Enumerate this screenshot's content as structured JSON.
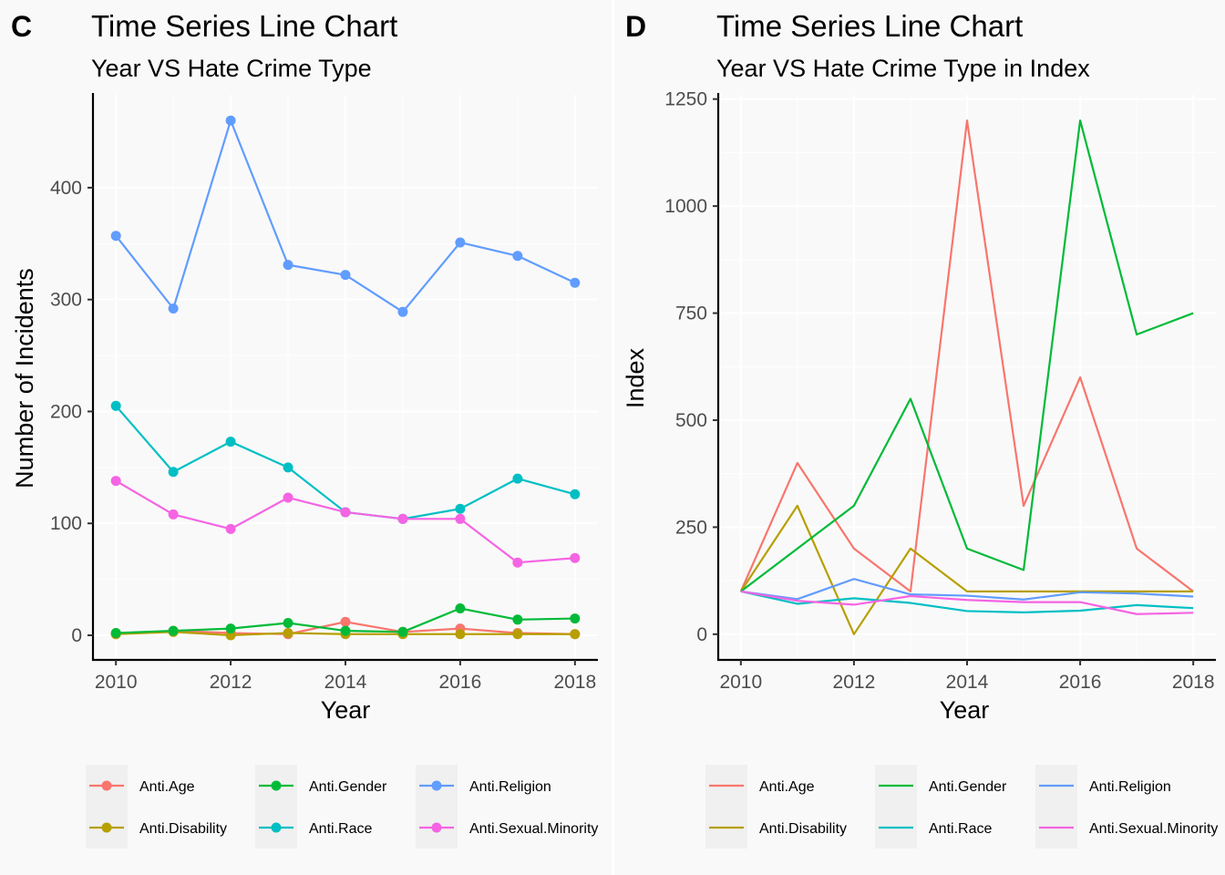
{
  "chart_data": [
    {
      "panel": "C",
      "type": "line",
      "markers": true,
      "title": "Time Series Line Chart",
      "subtitle": "Year VS Hate Crime Type",
      "xlabel": "Year",
      "ylabel": "Number of Incidents",
      "xlim": [
        2009.6,
        2018.4
      ],
      "ylim": [
        -22,
        483
      ],
      "x_ticks": [
        2010,
        2012,
        2014,
        2016,
        2018
      ],
      "y_ticks": [
        0,
        100,
        200,
        300,
        400
      ],
      "grid": true,
      "legend_position": "bottom",
      "x": [
        2010,
        2011,
        2012,
        2013,
        2014,
        2015,
        2016,
        2017,
        2018
      ],
      "series": [
        {
          "name": "Anti.Age",
          "color": "#F8766D",
          "values": [
            1,
            4,
            2,
            1,
            12,
            3,
            6,
            2,
            1
          ]
        },
        {
          "name": "Anti.Disability",
          "color": "#B79F00",
          "values": [
            1,
            3,
            0,
            2,
            1,
            1,
            1,
            1,
            1
          ]
        },
        {
          "name": "Anti.Gender",
          "color": "#00BA38",
          "values": [
            2,
            4,
            6,
            11,
            4,
            3,
            24,
            14,
            15
          ]
        },
        {
          "name": "Anti.Race",
          "color": "#00BFC4",
          "values": [
            205,
            146,
            173,
            150,
            110,
            104,
            113,
            140,
            126
          ]
        },
        {
          "name": "Anti.Religion",
          "color": "#619CFF",
          "values": [
            357,
            292,
            460,
            331,
            322,
            289,
            351,
            339,
            315
          ]
        },
        {
          "name": "Anti.Sexual.Minority",
          "color": "#F564E3",
          "values": [
            138,
            108,
            95,
            123,
            110,
            104,
            104,
            65,
            69
          ]
        }
      ]
    },
    {
      "panel": "D",
      "type": "line",
      "markers": false,
      "title": "Time Series Line Chart",
      "subtitle": "Year VS Hate Crime Type in Index",
      "xlabel": "Year",
      "ylabel": "Index",
      "xlim": [
        2009.6,
        2018.4
      ],
      "ylim": [
        -60,
        1260
      ],
      "x_ticks": [
        2010,
        2012,
        2014,
        2016,
        2018
      ],
      "y_ticks": [
        0,
        250,
        500,
        750,
        1000,
        1250
      ],
      "grid": true,
      "legend_position": "bottom",
      "x": [
        2010,
        2011,
        2012,
        2013,
        2014,
        2015,
        2016,
        2017,
        2018
      ],
      "series": [
        {
          "name": "Anti.Age",
          "color": "#F8766D",
          "values": [
            100,
            400,
            200,
            100,
            1200,
            300,
            600,
            200,
            100
          ]
        },
        {
          "name": "Anti.Disability",
          "color": "#B79F00",
          "values": [
            100,
            300,
            0,
            200,
            100,
            100,
            100,
            100,
            100
          ]
        },
        {
          "name": "Anti.Gender",
          "color": "#00BA38",
          "values": [
            100,
            200,
            300,
            550,
            200,
            150,
            1200,
            700,
            750
          ]
        },
        {
          "name": "Anti.Race",
          "color": "#00BFC4",
          "values": [
            100,
            71,
            84,
            73,
            54,
            51,
            55,
            68,
            61
          ]
        },
        {
          "name": "Anti.Religion",
          "color": "#619CFF",
          "values": [
            100,
            82,
            129,
            93,
            90,
            81,
            98,
            95,
            88
          ]
        },
        {
          "name": "Anti.Sexual.Minority",
          "color": "#F564E3",
          "values": [
            100,
            78,
            69,
            89,
            80,
            75,
            75,
            47,
            50
          ]
        }
      ]
    }
  ]
}
